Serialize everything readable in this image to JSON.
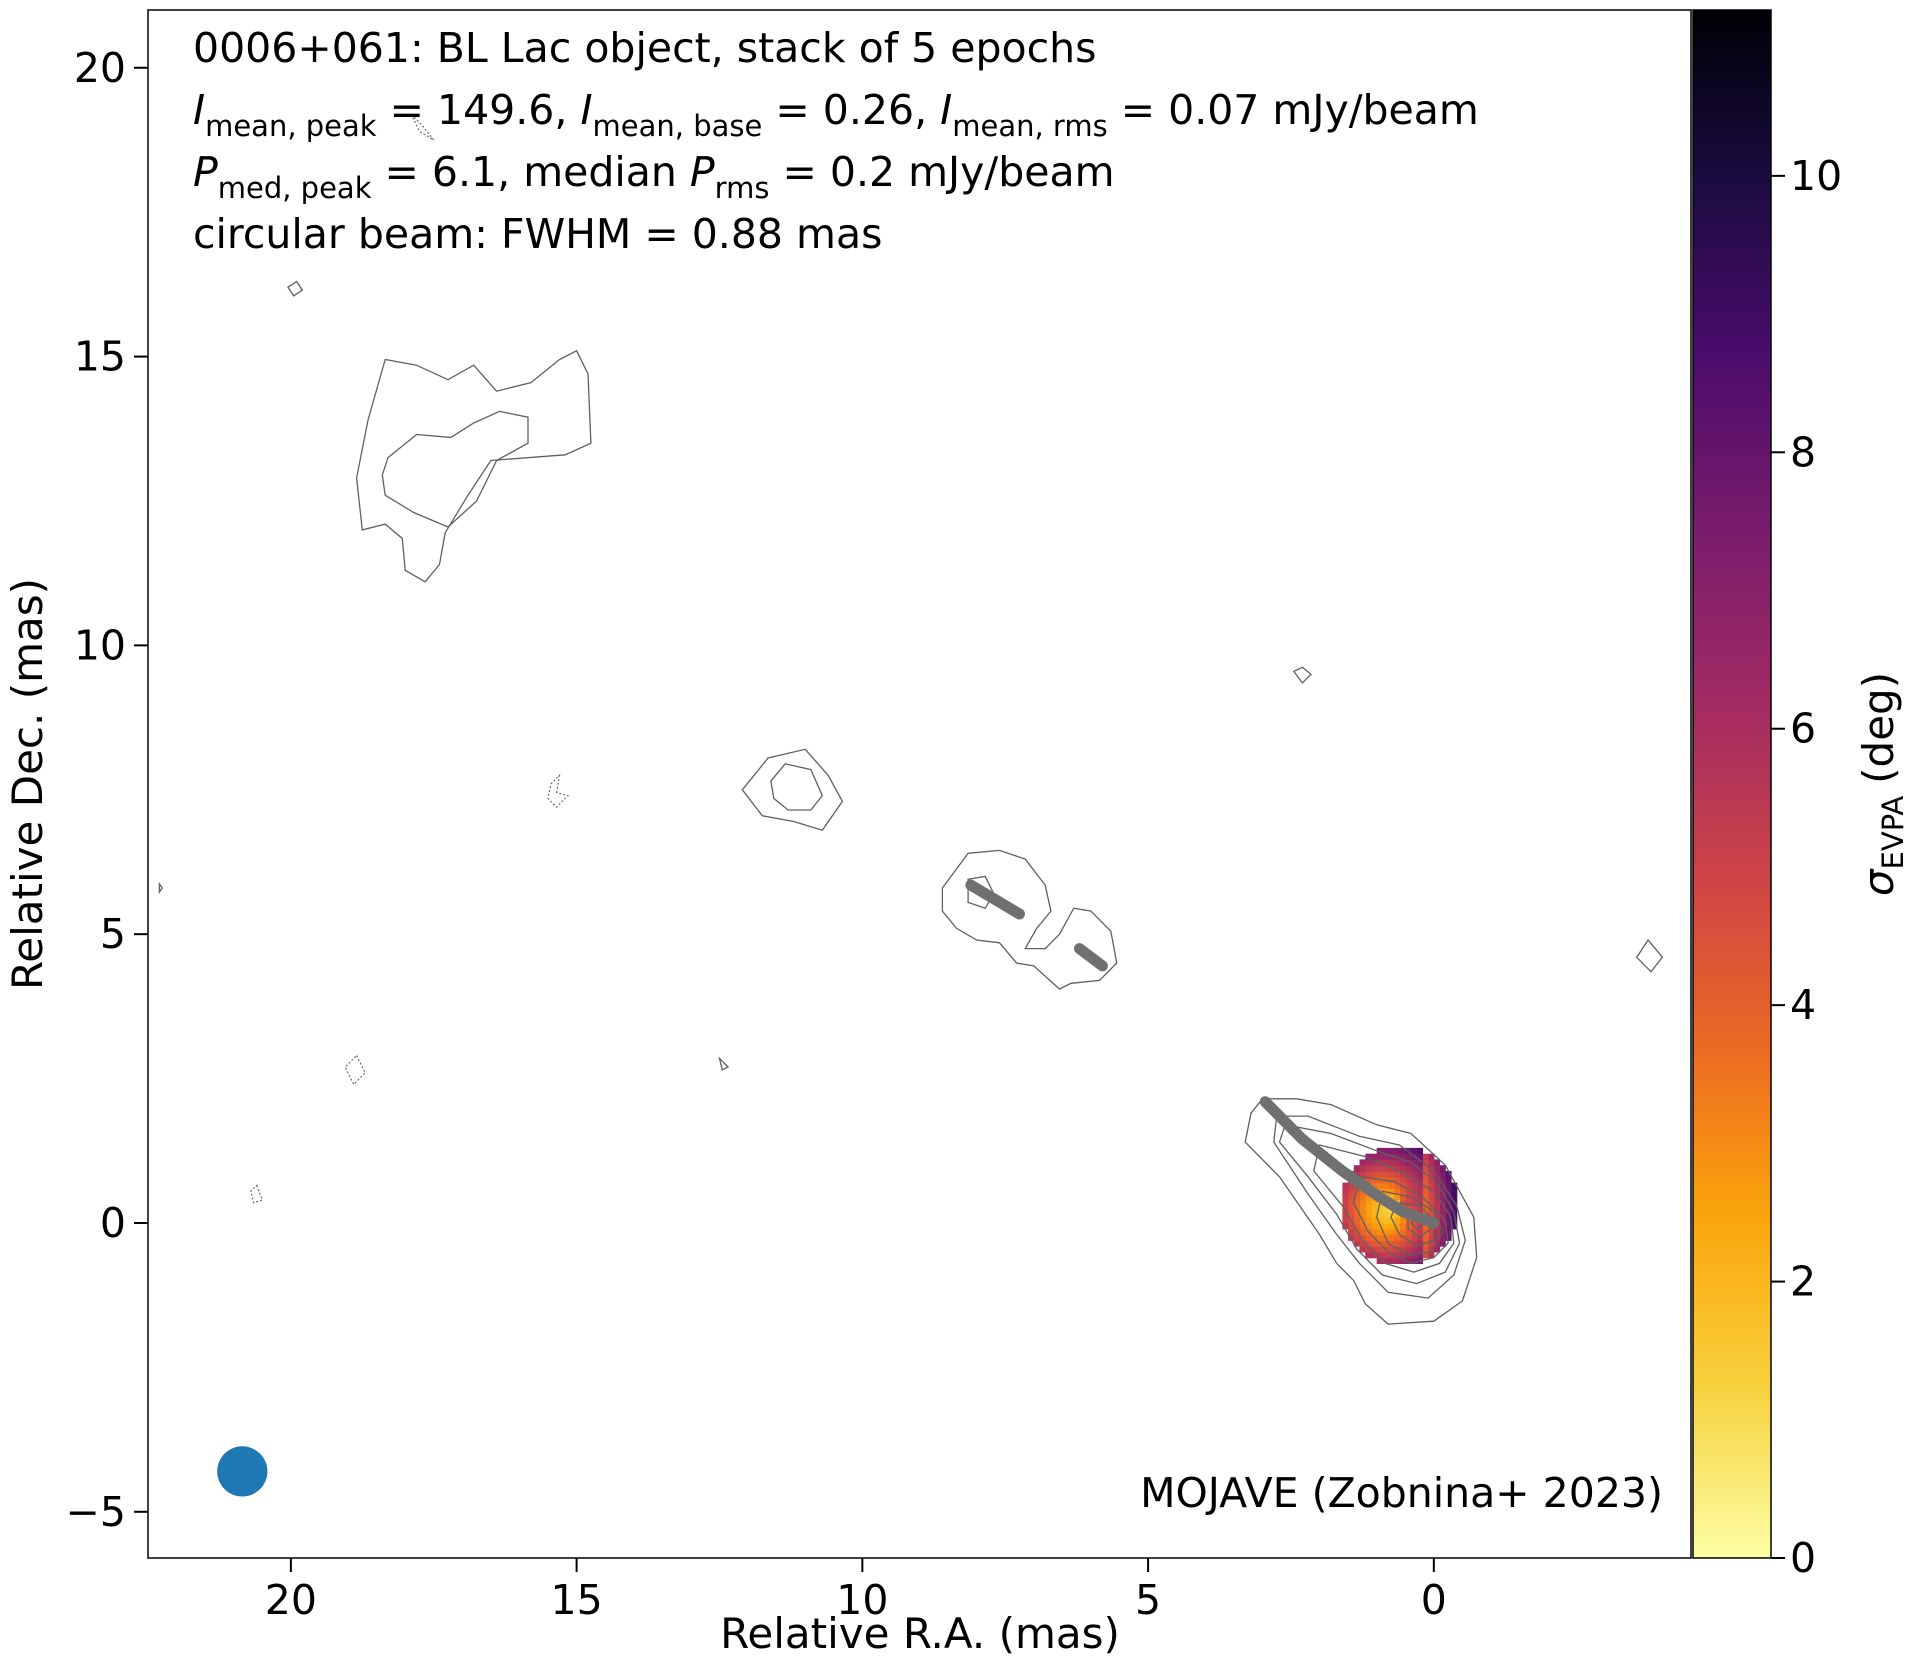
{
  "chart_data": {
    "type": "heatmap",
    "info_lines": [
      {
        "parts": [
          {
            "t": "0006+061: BL Lac object, stack of 5 epochs"
          }
        ]
      },
      {
        "parts": [
          {
            "t": "I",
            "style": "italic"
          },
          {
            "t": "mean, peak",
            "style": "sub"
          },
          {
            "t": " = 149.6, "
          },
          {
            "t": "I",
            "style": "italic"
          },
          {
            "t": "mean, base",
            "style": "sub"
          },
          {
            "t": " = 0.26, "
          },
          {
            "t": "I",
            "style": "italic"
          },
          {
            "t": "mean, rms",
            "style": "sub"
          },
          {
            "t": " = 0.07 mJy/beam"
          }
        ]
      },
      {
        "parts": [
          {
            "t": "P",
            "style": "italic"
          },
          {
            "t": "med, peak",
            "style": "sub"
          },
          {
            "t": " = 6.1, median "
          },
          {
            "t": "P",
            "style": "italic"
          },
          {
            "t": "rms",
            "style": "sub"
          },
          {
            "t": " = 0.2 mJy/beam"
          }
        ]
      },
      {
        "parts": [
          {
            "t": "circular beam: FWHM = 0.88 mas"
          }
        ]
      }
    ],
    "credit": "MOJAVE (Zobnina+ 2023)",
    "xlabel": "Relative R.A. (mas)",
    "ylabel": "Relative Dec. (mas)",
    "xlim": [
      22.5,
      -4.5
    ],
    "ylim": [
      -5.8,
      21.0
    ],
    "x_axis_inverted": true,
    "xticks": [
      20,
      15,
      10,
      5,
      0
    ],
    "xtick_labels": [
      "20",
      "15",
      "10",
      "5",
      "0"
    ],
    "yticks": [
      -5,
      0,
      5,
      10,
      15,
      20
    ],
    "ytick_labels": [
      "−5",
      "0",
      "5",
      "10",
      "15",
      "20"
    ],
    "grid": false,
    "colorbar": {
      "label_symbol": "σ",
      "label_sub": "EVPA",
      "label_unit": "(deg)",
      "range": [
        0,
        11.2
      ],
      "ticks": [
        0,
        2,
        4,
        6,
        8,
        10
      ],
      "tick_labels": [
        "0",
        "2",
        "4",
        "6",
        "8",
        "10"
      ],
      "colormap": "inferno_r",
      "stops": [
        "#fcffa4",
        "#f7d13d",
        "#fba40a",
        "#ec6824",
        "#cc4248",
        "#a02a63",
        "#781c6d",
        "#4a0c6b",
        "#1b0c41",
        "#000004"
      ]
    },
    "beam": {
      "fwhm_mas": 0.88,
      "position": [
        20.85,
        -4.3
      ],
      "color": "#1f77b4"
    },
    "polarization_color_patch": {
      "center": [
        0.55,
        0.25
      ],
      "radius_mas": 1.05,
      "sigma_evpa_range": [
        0.8,
        9.5
      ]
    },
    "evpa_ticks": {
      "color": "#707070",
      "segments": [
        [
          [
            2.95,
            2.1
          ],
          [
            2.3,
            1.45
          ],
          [
            1.6,
            0.9
          ],
          [
            0.95,
            0.45
          ],
          [
            0.55,
            0.2
          ],
          [
            0.0,
            0.0
          ]
        ],
        [
          [
            8.1,
            5.85
          ],
          [
            7.25,
            5.35
          ]
        ],
        [
          [
            6.2,
            4.75
          ],
          [
            5.8,
            4.45
          ]
        ]
      ]
    },
    "contours": {
      "color": "#606060",
      "solid": [
        [
          [
            3.2,
            1.9
          ],
          [
            3.0,
            2.15
          ],
          [
            2.4,
            2.15
          ],
          [
            1.8,
            2.05
          ],
          [
            1.0,
            1.7
          ],
          [
            0.4,
            1.55
          ],
          [
            -0.2,
            1.0
          ],
          [
            -0.7,
            0.1
          ],
          [
            -0.75,
            -0.6
          ],
          [
            -0.5,
            -1.35
          ],
          [
            0.0,
            -1.7
          ],
          [
            0.8,
            -1.75
          ],
          [
            1.2,
            -1.4
          ],
          [
            1.4,
            -1.0
          ],
          [
            1.7,
            -0.7
          ],
          [
            2.0,
            -0.2
          ],
          [
            2.7,
            0.8
          ],
          [
            3.3,
            1.4
          ]
        ],
        [
          [
            2.75,
            1.85
          ],
          [
            2.2,
            1.85
          ],
          [
            1.3,
            1.5
          ],
          [
            0.6,
            1.35
          ],
          [
            0.0,
            0.9
          ],
          [
            -0.4,
            0.3
          ],
          [
            -0.55,
            -0.3
          ],
          [
            -0.35,
            -0.9
          ],
          [
            0.1,
            -1.3
          ],
          [
            0.8,
            -1.2
          ],
          [
            1.3,
            -0.7
          ],
          [
            1.7,
            -0.2
          ],
          [
            2.2,
            0.5
          ],
          [
            2.8,
            1.4
          ]
        ],
        [
          [
            2.6,
            1.7
          ],
          [
            1.8,
            1.55
          ],
          [
            1.0,
            1.25
          ],
          [
            0.4,
            1.05
          ],
          [
            -0.05,
            0.7
          ],
          [
            -0.35,
            0.2
          ],
          [
            -0.45,
            -0.35
          ],
          [
            -0.2,
            -0.85
          ],
          [
            0.3,
            -1.05
          ],
          [
            0.9,
            -0.9
          ],
          [
            1.35,
            -0.45
          ],
          [
            1.7,
            0.15
          ],
          [
            2.2,
            0.8
          ],
          [
            2.7,
            1.4
          ]
        ],
        [
          [
            2.0,
            1.35
          ],
          [
            1.2,
            1.15
          ],
          [
            0.5,
            0.85
          ],
          [
            0.0,
            0.55
          ],
          [
            -0.3,
            0.1
          ],
          [
            -0.35,
            -0.35
          ],
          [
            -0.1,
            -0.7
          ],
          [
            0.35,
            -0.85
          ],
          [
            0.85,
            -0.7
          ],
          [
            1.25,
            -0.3
          ],
          [
            1.6,
            0.3
          ],
          [
            2.1,
            0.9
          ]
        ],
        [
          [
            1.3,
            0.8
          ],
          [
            0.7,
            0.72
          ],
          [
            0.2,
            0.45
          ],
          [
            -0.2,
            0.05
          ],
          [
            -0.25,
            -0.35
          ],
          [
            0.0,
            -0.6
          ],
          [
            0.4,
            -0.7
          ],
          [
            0.8,
            -0.5
          ],
          [
            1.15,
            -0.15
          ],
          [
            1.4,
            0.35
          ]
        ],
        [
          [
            0.9,
            0.55
          ],
          [
            0.4,
            0.45
          ],
          [
            0.0,
            0.2
          ],
          [
            -0.15,
            -0.15
          ],
          [
            0.05,
            -0.5
          ],
          [
            0.45,
            -0.55
          ],
          [
            0.8,
            -0.35
          ],
          [
            1.0,
            0.1
          ]
        ],
        [
          [
            0.65,
            0.35
          ],
          [
            0.25,
            0.3
          ],
          [
            0.0,
            0.05
          ],
          [
            0.0,
            -0.3
          ],
          [
            0.3,
            -0.4
          ],
          [
            0.6,
            -0.2
          ],
          [
            0.75,
            0.1
          ]
        ],
        [
          [
            0.45,
            0.2
          ],
          [
            0.15,
            0.15
          ],
          [
            0.05,
            -0.1
          ],
          [
            0.25,
            -0.25
          ],
          [
            0.45,
            -0.1
          ]
        ],
        [
          [
            0.3,
            0.1
          ],
          [
            0.15,
            0.0
          ],
          [
            0.3,
            -0.1
          ],
          [
            0.4,
            0.0
          ]
        ],
        [
          [
            18.35,
            14.95
          ],
          [
            17.8,
            14.85
          ],
          [
            17.25,
            14.6
          ],
          [
            16.8,
            14.85
          ],
          [
            16.4,
            14.4
          ],
          [
            15.8,
            14.55
          ],
          [
            15.3,
            14.95
          ],
          [
            15.0,
            15.1
          ],
          [
            14.8,
            14.7
          ],
          [
            14.75,
            13.5
          ],
          [
            15.2,
            13.3
          ],
          [
            16.5,
            13.2
          ],
          [
            16.9,
            12.6
          ],
          [
            17.3,
            11.95
          ],
          [
            17.4,
            11.4
          ],
          [
            17.65,
            11.1
          ],
          [
            18.0,
            11.3
          ],
          [
            18.05,
            11.85
          ],
          [
            18.35,
            12.1
          ],
          [
            18.75,
            12.0
          ],
          [
            18.85,
            12.9
          ],
          [
            18.65,
            13.9
          ]
        ],
        [
          [
            18.3,
            13.25
          ],
          [
            17.8,
            13.65
          ],
          [
            17.2,
            13.6
          ],
          [
            16.8,
            13.85
          ],
          [
            16.35,
            14.05
          ],
          [
            15.85,
            13.95
          ],
          [
            15.85,
            13.5
          ],
          [
            16.4,
            13.2
          ],
          [
            16.75,
            12.5
          ],
          [
            17.25,
            12.05
          ],
          [
            17.85,
            12.3
          ],
          [
            18.35,
            12.6
          ],
          [
            18.4,
            12.95
          ]
        ],
        [
          [
            12.1,
            7.5
          ],
          [
            11.65,
            8.05
          ],
          [
            11.0,
            8.2
          ],
          [
            10.6,
            7.75
          ],
          [
            10.35,
            7.3
          ],
          [
            10.7,
            6.8
          ],
          [
            11.2,
            6.95
          ],
          [
            11.75,
            7.05
          ]
        ],
        [
          [
            11.6,
            7.65
          ],
          [
            11.35,
            7.95
          ],
          [
            10.9,
            7.85
          ],
          [
            10.7,
            7.4
          ],
          [
            10.9,
            7.15
          ],
          [
            11.3,
            7.15
          ],
          [
            11.55,
            7.35
          ]
        ],
        [
          [
            8.6,
            5.8
          ],
          [
            8.15,
            6.4
          ],
          [
            7.6,
            6.45
          ],
          [
            7.15,
            6.3
          ],
          [
            6.8,
            5.85
          ],
          [
            6.7,
            5.4
          ],
          [
            6.95,
            5.1
          ],
          [
            7.15,
            4.75
          ],
          [
            6.8,
            4.75
          ],
          [
            6.55,
            5.0
          ],
          [
            6.3,
            5.45
          ],
          [
            6.0,
            5.4
          ],
          [
            5.65,
            5.05
          ],
          [
            5.55,
            4.5
          ],
          [
            5.85,
            4.2
          ],
          [
            6.35,
            4.15
          ],
          [
            6.55,
            4.05
          ],
          [
            7.0,
            4.45
          ],
          [
            7.3,
            4.5
          ],
          [
            7.6,
            4.85
          ],
          [
            8.0,
            4.9
          ],
          [
            8.35,
            5.1
          ],
          [
            8.6,
            5.4
          ]
        ],
        [
          [
            8.15,
            5.95
          ],
          [
            7.85,
            6.0
          ],
          [
            7.7,
            5.7
          ],
          [
            7.85,
            5.45
          ],
          [
            8.15,
            5.55
          ]
        ],
        [
          [
            2.3,
            9.62
          ],
          [
            2.45,
            9.55
          ],
          [
            2.3,
            9.35
          ],
          [
            2.15,
            9.5
          ]
        ],
        [
          [
            19.9,
            16.3
          ],
          [
            19.8,
            16.15
          ],
          [
            19.95,
            16.05
          ],
          [
            20.05,
            16.2
          ]
        ],
        [
          [
            -3.75,
            4.9
          ],
          [
            -3.55,
            4.6
          ],
          [
            -3.8,
            4.35
          ],
          [
            -4.0,
            4.6
          ]
        ],
        [
          [
            22.3,
            5.87
          ],
          [
            22.25,
            5.8
          ],
          [
            22.3,
            5.73
          ]
        ],
        [
          [
            12.5,
            2.85
          ],
          [
            12.35,
            2.7
          ],
          [
            12.45,
            2.65
          ]
        ]
      ],
      "dashed": [
        [
          [
            17.9,
            19.2
          ],
          [
            17.75,
            18.9
          ],
          [
            17.5,
            18.75
          ],
          [
            17.7,
            19.0
          ]
        ],
        [
          [
            15.35,
            7.45
          ],
          [
            15.3,
            7.75
          ],
          [
            15.45,
            7.6
          ],
          [
            15.5,
            7.35
          ],
          [
            15.35,
            7.2
          ],
          [
            15.15,
            7.4
          ]
        ],
        [
          [
            18.85,
            2.9
          ],
          [
            18.7,
            2.6
          ],
          [
            18.9,
            2.4
          ],
          [
            19.05,
            2.7
          ]
        ],
        [
          [
            20.6,
            0.65
          ],
          [
            20.5,
            0.4
          ],
          [
            20.65,
            0.35
          ],
          [
            20.7,
            0.55
          ]
        ]
      ]
    }
  }
}
